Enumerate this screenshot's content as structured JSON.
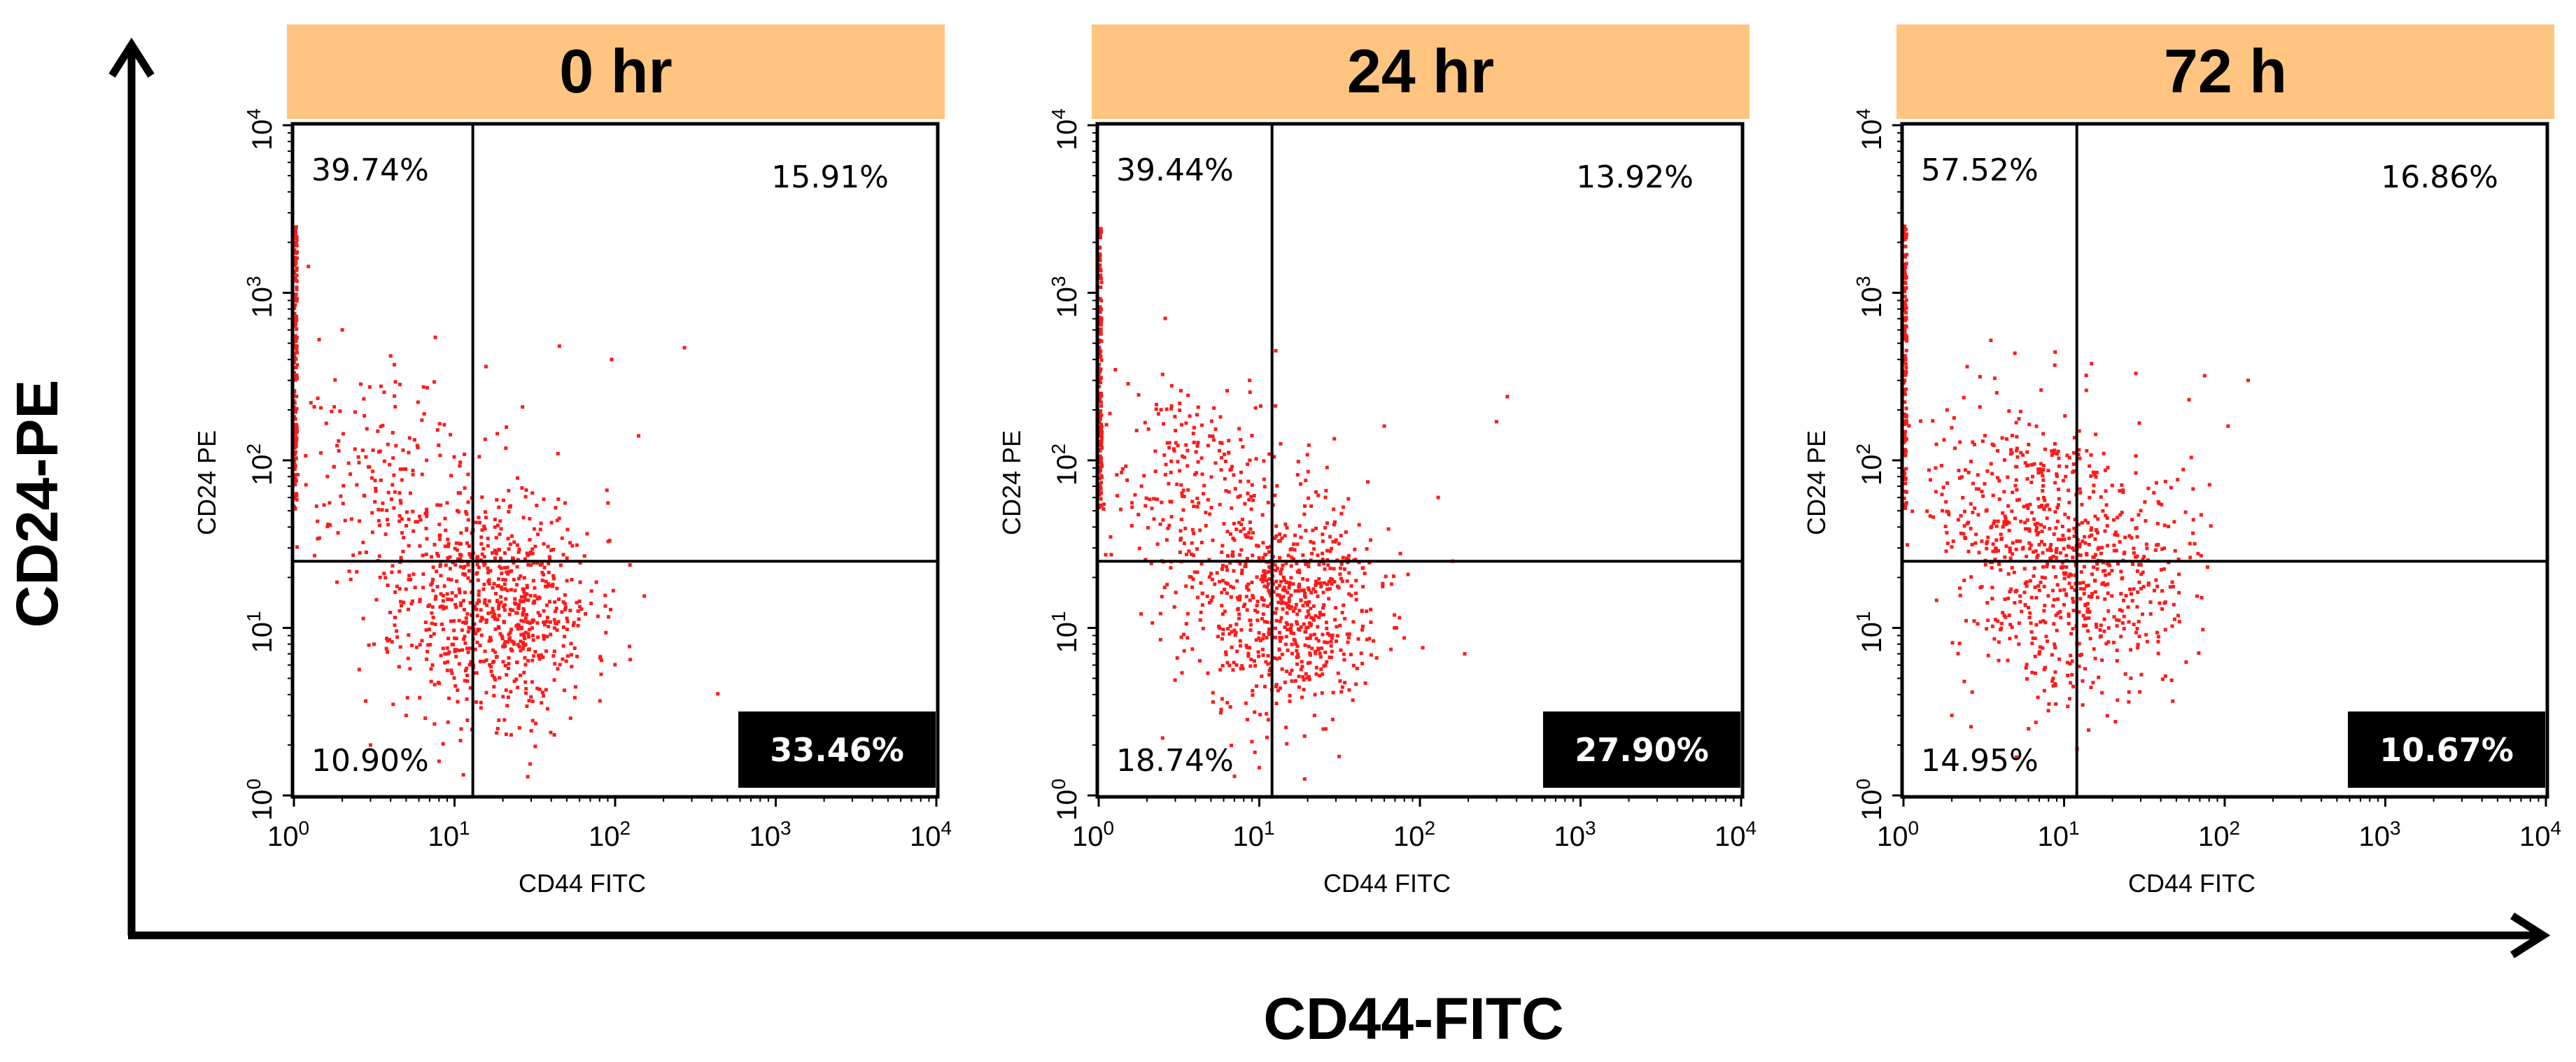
{
  "chart_data": {
    "type": "scatter",
    "main_xlabel": "CD44-FITC",
    "main_ylabel": "CD24-PE",
    "panels": [
      {
        "title": "0 hr",
        "xlabel": "CD44 FITC",
        "ylabel": "CD24 PE",
        "xscale": "log",
        "yscale": "log",
        "xlim": [
          1,
          10000
        ],
        "ylim": [
          1,
          10000
        ],
        "ticks": [
          "0",
          "1",
          "2",
          "3",
          "4"
        ],
        "tick_base": "10",
        "gate": {
          "x": 13,
          "y": 25
        },
        "quadrants": {
          "upper_left": "39.74%",
          "upper_right": "15.91%",
          "lower_left": "10.90%",
          "lower_right": "33.46%"
        },
        "highlight": "lower_right",
        "events": {
          "main_center": [
            18,
            14
          ],
          "main_spread": [
            0.3,
            0.34
          ],
          "main_count": 760,
          "left_center": [
            4,
            70
          ],
          "left_spread": [
            0.32,
            0.35
          ],
          "left_count": 200,
          "axis_count": 160,
          "seed": 11,
          "outliers": [
            [
              2,
              600
            ],
            [
              4,
              420
            ],
            [
              45,
              480
            ],
            [
              95,
              400
            ],
            [
              270,
              470
            ],
            [
              140,
              140
            ],
            [
              5,
              3
            ],
            [
              3,
              2
            ],
            [
              8,
              1.6
            ]
          ]
        }
      },
      {
        "title": "24 hr",
        "xlabel": "CD44 FITC",
        "ylabel": "CD24 PE",
        "xscale": "log",
        "yscale": "log",
        "xlim": [
          1,
          10000
        ],
        "ylim": [
          1,
          10000
        ],
        "ticks": [
          "0",
          "1",
          "2",
          "3",
          "4"
        ],
        "tick_base": "10",
        "gate": {
          "x": 12,
          "y": 25
        },
        "quadrants": {
          "upper_left": "39.44%",
          "upper_right": "13.92%",
          "lower_left": "18.74%",
          "lower_right": "27.90%"
        },
        "highlight": "lower_right",
        "events": {
          "main_center": [
            14,
            13
          ],
          "main_spread": [
            0.3,
            0.32
          ],
          "main_count": 700,
          "left_center": [
            3.5,
            75
          ],
          "left_spread": [
            0.3,
            0.3
          ],
          "left_count": 230,
          "axis_count": 150,
          "seed": 23,
          "outliers": [
            [
              350,
              240
            ],
            [
              300,
              170
            ],
            [
              130,
              60
            ],
            [
              160,
              25
            ],
            [
              190,
              7
            ],
            [
              60,
              160
            ],
            [
              2.5,
              2.2
            ],
            [
              7,
              1.3
            ]
          ]
        }
      },
      {
        "title": "72 h",
        "xlabel": "CD44 FITC",
        "ylabel": "CD24 PE",
        "xscale": "log",
        "yscale": "log",
        "xlim": [
          1,
          10000
        ],
        "ylim": [
          1,
          10000
        ],
        "ticks": [
          "0",
          "1",
          "2",
          "3",
          "4"
        ],
        "tick_base": "10",
        "gate": {
          "x": 12,
          "y": 25
        },
        "quadrants": {
          "upper_left": "57.52%",
          "upper_right": "16.86%",
          "lower_left": "14.95%",
          "lower_right": "10.67%"
        },
        "highlight": "lower_right",
        "events": {
          "main_center": [
            12,
            22
          ],
          "main_spread": [
            0.34,
            0.38
          ],
          "main_count": 650,
          "left_center": [
            4,
            70
          ],
          "left_spread": [
            0.3,
            0.3
          ],
          "left_count": 190,
          "axis_count": 130,
          "seed": 37,
          "outliers": [
            [
              3.5,
              520
            ],
            [
              28,
              330
            ],
            [
              75,
              320
            ],
            [
              140,
              300
            ],
            [
              105,
              160
            ],
            [
              60,
              230
            ],
            [
              2,
              3
            ],
            [
              6,
              2.5
            ]
          ]
        }
      }
    ]
  },
  "colors": {
    "header": "#ffc580",
    "dot": "#ff1a1a",
    "frame": "#000000",
    "highlight_box": "#000000"
  }
}
